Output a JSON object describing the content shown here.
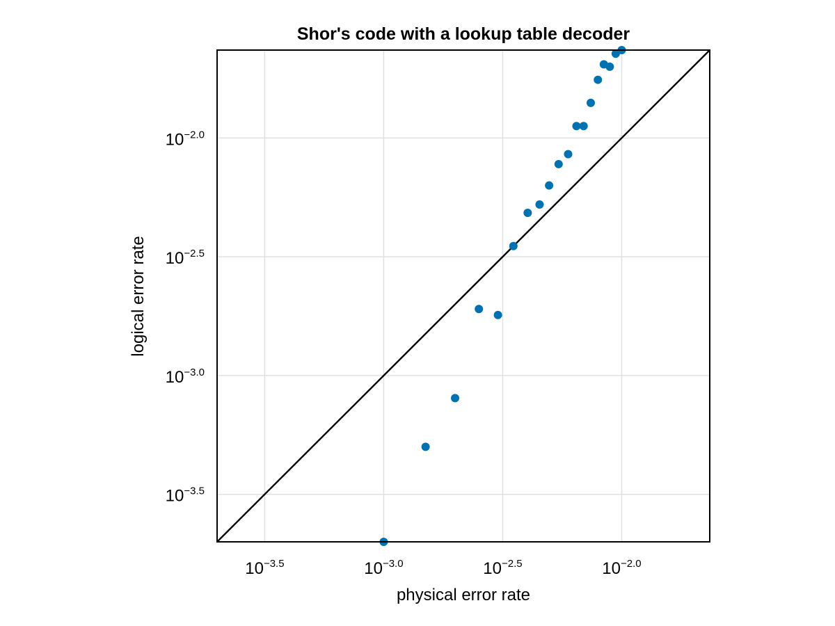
{
  "chart_data": {
    "type": "scatter",
    "title": "Shor's code with a lookup table decoder",
    "xlabel": "physical error rate",
    "ylabel": "logical error rate",
    "x_scale": "log10",
    "y_scale": "log10",
    "xlim_log10": [
      -3.7,
      -1.63
    ],
    "ylim_log10": [
      -3.7,
      -1.63
    ],
    "grid": true,
    "x_ticks": [
      {
        "value": -3.5,
        "base": "10",
        "exp": "−3.5"
      },
      {
        "value": -3.0,
        "base": "10",
        "exp": "−3.0"
      },
      {
        "value": -2.5,
        "base": "10",
        "exp": "−2.5"
      },
      {
        "value": -2.0,
        "base": "10",
        "exp": "−2.0"
      }
    ],
    "y_ticks": [
      {
        "value": -3.5,
        "base": "10",
        "exp": "−3.5"
      },
      {
        "value": -3.0,
        "base": "10",
        "exp": "−3.0"
      },
      {
        "value": -2.5,
        "base": "10",
        "exp": "−2.5"
      },
      {
        "value": -2.0,
        "base": "10",
        "exp": "−2.0"
      }
    ],
    "reference_line": {
      "type": "y=x"
    },
    "series": [
      {
        "color": "#0072b2",
        "points_log10": [
          {
            "x": -3.0,
            "y": -3.7
          },
          {
            "x": -2.824,
            "y": -3.3
          },
          {
            "x": -2.7,
            "y": -3.095
          },
          {
            "x": -2.6,
            "y": -2.72
          },
          {
            "x": -2.52,
            "y": -2.745
          },
          {
            "x": -2.455,
            "y": -2.455
          },
          {
            "x": -2.395,
            "y": -2.315
          },
          {
            "x": -2.345,
            "y": -2.28
          },
          {
            "x": -2.305,
            "y": -2.2
          },
          {
            "x": -2.265,
            "y": -2.11
          },
          {
            "x": -2.225,
            "y": -2.068
          },
          {
            "x": -2.19,
            "y": -1.95
          },
          {
            "x": -2.16,
            "y": -1.95
          },
          {
            "x": -2.13,
            "y": -1.852
          },
          {
            "x": -2.1,
            "y": -1.755
          },
          {
            "x": -2.075,
            "y": -1.69
          },
          {
            "x": -2.05,
            "y": -1.7
          },
          {
            "x": -2.025,
            "y": -1.645
          },
          {
            "x": -2.0,
            "y": -1.63
          }
        ]
      }
    ]
  }
}
